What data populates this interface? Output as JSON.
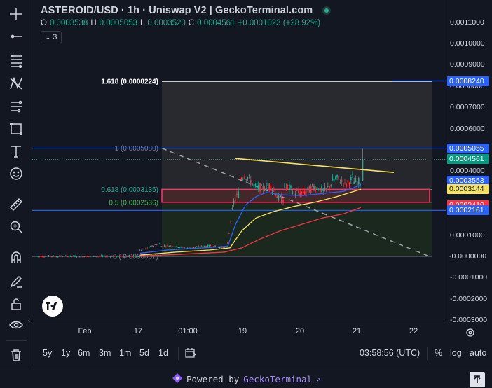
{
  "header": {
    "title": "ASTEROID/USD · 1h · Uniswap V2 | GeckoTerminal.com",
    "ohlc": [
      {
        "label": "O",
        "value": "0.0003538"
      },
      {
        "label": "H",
        "value": "0.0005053"
      },
      {
        "label": "L",
        "value": "0.0003520"
      },
      {
        "label": "C",
        "value": "0.0004561"
      }
    ],
    "change": "+0.0001023 (+28.92%)",
    "indicator_count": "3"
  },
  "price_axis": {
    "ticks": [
      {
        "label": "0.0011000",
        "value": 0.0011
      },
      {
        "label": "0.0010000",
        "value": 0.001
      },
      {
        "label": "0.0009000",
        "value": 0.0009
      },
      {
        "label": "0.0008000",
        "value": 0.0008
      },
      {
        "label": "0.0007000",
        "value": 0.0007
      },
      {
        "label": "0.0006000",
        "value": 0.0006
      },
      {
        "label": "0.0004000",
        "value": 0.0004
      },
      {
        "label": "0.0001000",
        "value": 0.0001
      },
      {
        "label": "0.0000000",
        "value": 0.0
      },
      {
        "label": "-0.0001000",
        "value": -0.0001
      },
      {
        "label": "-0.0002000",
        "value": -0.0002
      },
      {
        "label": "-0.0003000",
        "value": -0.0003
      }
    ],
    "price_labels": [
      {
        "label": "0.0008240",
        "value": 0.000824,
        "bg": "#2962ff",
        "fg": "#ffffff"
      },
      {
        "label": "0.0005055",
        "value": 0.0005055,
        "bg": "#2962ff",
        "fg": "#ffffff"
      },
      {
        "label": "0.0004561",
        "value": 0.0004561,
        "bg": "#089981",
        "fg": "#ffffff"
      },
      {
        "label": "0.0003553",
        "value": 0.0003553,
        "bg": "#2962ff",
        "fg": "#ffffff"
      },
      {
        "label": "0.0003144",
        "value": 0.0003144,
        "bg": "#f7e35b",
        "fg": "#131722"
      },
      {
        "label": "0.0002410",
        "value": 0.000241,
        "bg": "#f23645",
        "fg": "#ffffff"
      },
      {
        "label": "0.0002161",
        "value": 0.0002161,
        "bg": "#2962ff",
        "fg": "#ffffff"
      },
      {
        "label": "-0.0000000",
        "value": 0.0,
        "bg": "#131722",
        "fg": "#d1d4dc"
      }
    ]
  },
  "time_axis": {
    "ticks": [
      "Feb",
      "17",
      "01:00",
      "19",
      "20",
      "21",
      "22"
    ]
  },
  "fib": {
    "levels": [
      {
        "label": "1.618 (0.0008224)",
        "value": 0.0008224,
        "color": "#ffffff"
      },
      {
        "label": "1 (0.0005080)",
        "value": 0.000508,
        "color": "#787b86"
      },
      {
        "label": "0.618 (0.0003136)",
        "value": 0.0003136,
        "color": "#22ab94"
      },
      {
        "label": "0.5 (0.0002536)",
        "value": 0.0002536,
        "color": "#4caf50"
      },
      {
        "label": "0 ( 0.0000007)",
        "value": 7e-07,
        "color": "#787b86"
      }
    ]
  },
  "bottom_bar": {
    "ranges": [
      "5y",
      "1y",
      "6m",
      "3m",
      "1m",
      "5d",
      "1d"
    ],
    "clock": "03:58:56 (UTC)",
    "percent": "%",
    "log": "log",
    "auto": "auto"
  },
  "footer": {
    "powered_prefix": "Powered by",
    "brand": "GeckoTerminal",
    "arrow": "↗"
  },
  "colors": {
    "background": "#131722",
    "up": "#22ab94",
    "down": "#f23645",
    "ema_fast": "#2962ff",
    "ema_mid": "#f7e35b",
    "ema_slow": "#f23645",
    "zone": "#ff2e63",
    "blue_line": "#2962ff"
  },
  "tools": [
    "crosshair-icon",
    "trendline-icon",
    "fib-icon",
    "pattern-icon",
    "projection-icon",
    "rect-icon",
    "text-icon",
    "emoji-icon",
    "ruler-icon",
    "zoom-icon",
    "magnet-icon",
    "lock-draw-icon",
    "lock-icon",
    "eye-icon",
    "trash-icon"
  ]
}
